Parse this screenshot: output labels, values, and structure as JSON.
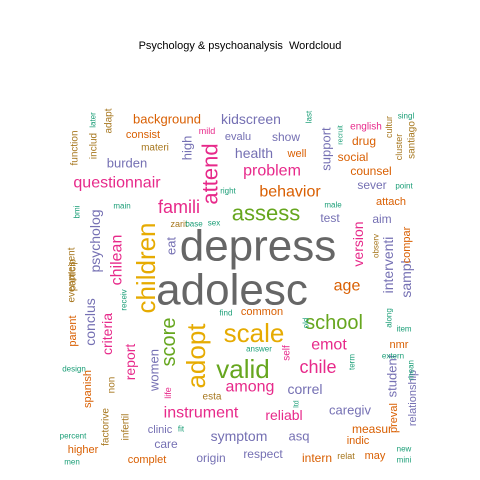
{
  "chart_data": {
    "type": "wordcloud",
    "title": "Psychology & psychoanalysis  Wordcloud",
    "palette": {
      "pink": "#E7298A",
      "green": "#66A61E",
      "gold": "#E6AB02",
      "orange": "#D95F02",
      "purple": "#7570B3",
      "teal": "#1B9E77",
      "brown": "#A6761D",
      "gray": "#666666"
    },
    "words": [
      {
        "text": "depress",
        "rank": 1,
        "color": "gray"
      },
      {
        "text": "adolesc",
        "rank": 1,
        "color": "gray"
      },
      {
        "text": "children",
        "rank": 2,
        "color": "gold"
      },
      {
        "text": "adopt",
        "rank": 2,
        "color": "gold"
      },
      {
        "text": "scale",
        "rank": 2,
        "color": "gold"
      },
      {
        "text": "valid",
        "rank": 2,
        "color": "green"
      },
      {
        "text": "assess",
        "rank": 2,
        "color": "green"
      },
      {
        "text": "attend",
        "rank": 3,
        "color": "pink"
      },
      {
        "text": "school",
        "rank": 3,
        "color": "green"
      },
      {
        "text": "score",
        "rank": 3,
        "color": "green"
      },
      {
        "text": "questionnair",
        "rank": 3,
        "color": "pink"
      },
      {
        "text": "famili",
        "rank": 3,
        "color": "pink"
      },
      {
        "text": "behavior",
        "rank": 3,
        "color": "orange"
      },
      {
        "text": "problem",
        "rank": 3,
        "color": "pink"
      },
      {
        "text": "chilean",
        "rank": 3,
        "color": "pink"
      },
      {
        "text": "instrument",
        "rank": 3,
        "color": "pink"
      },
      {
        "text": "among",
        "rank": 3,
        "color": "pink"
      },
      {
        "text": "chile",
        "rank": 3,
        "color": "pink"
      },
      {
        "text": "age",
        "rank": 3,
        "color": "orange"
      },
      {
        "text": "emot",
        "rank": 3,
        "color": "pink"
      },
      {
        "text": "version",
        "rank": 3,
        "color": "pink"
      },
      {
        "text": "criteria",
        "rank": 3,
        "color": "pink"
      },
      {
        "text": "psycholog",
        "rank": 3,
        "color": "purple"
      },
      {
        "text": "conclus",
        "rank": 3,
        "color": "purple"
      },
      {
        "text": "report",
        "rank": 3,
        "color": "pink"
      },
      {
        "text": "health",
        "rank": 4,
        "color": "purple"
      },
      {
        "text": "symptom",
        "rank": 4,
        "color": "purple"
      },
      {
        "text": "reliabl",
        "rank": 4,
        "color": "pink"
      },
      {
        "text": "kidscreen",
        "rank": 4,
        "color": "purple"
      },
      {
        "text": "support",
        "rank": 4,
        "color": "purple"
      },
      {
        "text": "interventi",
        "rank": 4,
        "color": "purple"
      },
      {
        "text": "sampl",
        "rank": 4,
        "color": "purple"
      },
      {
        "text": "correl",
        "rank": 4,
        "color": "purple"
      },
      {
        "text": "women",
        "rank": 4,
        "color": "purple"
      },
      {
        "text": "burden",
        "rank": 4,
        "color": "purple"
      },
      {
        "text": "background",
        "rank": 4,
        "color": "orange"
      },
      {
        "text": "asq",
        "rank": 4,
        "color": "purple"
      },
      {
        "text": "caregiv",
        "rank": 4,
        "color": "purple"
      },
      {
        "text": "eat",
        "rank": 4,
        "color": "purple"
      },
      {
        "text": "high",
        "rank": 4,
        "color": "purple"
      },
      {
        "text": "student",
        "rank": 4,
        "color": "purple"
      },
      {
        "text": "common",
        "rank": 5,
        "color": "orange"
      },
      {
        "text": "consist",
        "rank": 5,
        "color": "orange"
      },
      {
        "text": "show",
        "rank": 5,
        "color": "purple"
      },
      {
        "text": "social",
        "rank": 5,
        "color": "orange"
      },
      {
        "text": "sever",
        "rank": 5,
        "color": "purple"
      },
      {
        "text": "counsel",
        "rank": 5,
        "color": "orange"
      },
      {
        "text": "drug",
        "rank": 5,
        "color": "orange"
      },
      {
        "text": "evalu",
        "rank": 5,
        "color": "purple"
      },
      {
        "text": "respect",
        "rank": 5,
        "color": "purple"
      },
      {
        "text": "origin",
        "rank": 5,
        "color": "purple"
      },
      {
        "text": "intern",
        "rank": 5,
        "color": "orange"
      },
      {
        "text": "care",
        "rank": 5,
        "color": "purple"
      },
      {
        "text": "measur",
        "rank": 5,
        "color": "orange"
      },
      {
        "text": "test",
        "rank": 5,
        "color": "purple"
      },
      {
        "text": "aim",
        "rank": 5,
        "color": "purple"
      },
      {
        "text": "attach",
        "rank": 5,
        "color": "orange"
      },
      {
        "text": "compar",
        "rank": 5,
        "color": "orange"
      },
      {
        "text": "parent",
        "rank": 5,
        "color": "orange"
      },
      {
        "text": "spanish",
        "rank": 5,
        "color": "orange"
      },
      {
        "text": "higher",
        "rank": 5,
        "color": "orange"
      },
      {
        "text": "complet",
        "rank": 5,
        "color": "orange"
      },
      {
        "text": "relationship",
        "rank": 5,
        "color": "purple"
      },
      {
        "text": "preval",
        "rank": 5,
        "color": "orange"
      },
      {
        "text": "nmr",
        "rank": 5,
        "color": "orange"
      },
      {
        "text": "may",
        "rank": 5,
        "color": "orange"
      },
      {
        "text": "well",
        "rank": 5,
        "color": "orange"
      },
      {
        "text": "clinic",
        "rank": 5,
        "color": "purple"
      },
      {
        "text": "indic",
        "rank": 5,
        "color": "orange"
      },
      {
        "text": "materi",
        "rank": 6,
        "color": "brown"
      },
      {
        "text": "adapt",
        "rank": 6,
        "color": "brown"
      },
      {
        "text": "includ",
        "rank": 6,
        "color": "brown"
      },
      {
        "text": "function",
        "rank": 6,
        "color": "brown"
      },
      {
        "text": "particip",
        "rank": 6,
        "color": "brown"
      },
      {
        "text": "evenpresent",
        "rank": 6,
        "color": "brown"
      },
      {
        "text": "non",
        "rank": 6,
        "color": "brown"
      },
      {
        "text": "infertil",
        "rank": 6,
        "color": "brown"
      },
      {
        "text": "factorive",
        "rank": 6,
        "color": "brown"
      },
      {
        "text": "esta",
        "rank": 6,
        "color": "brown"
      },
      {
        "text": "english",
        "rank": 6,
        "color": "pink"
      },
      {
        "text": "self",
        "rank": 6,
        "color": "pink"
      },
      {
        "text": "santiago",
        "rank": 6,
        "color": "brown"
      },
      {
        "text": "cluster",
        "rank": 6,
        "color": "brown"
      },
      {
        "text": "cultur",
        "rank": 6,
        "color": "brown"
      },
      {
        "text": "relat",
        "rank": 6,
        "color": "brown"
      },
      {
        "text": "mild",
        "rank": 6,
        "color": "pink"
      },
      {
        "text": "life",
        "rank": 6,
        "color": "pink"
      },
      {
        "text": "zarit",
        "rank": 6,
        "color": "brown"
      },
      {
        "text": "observ",
        "rank": 6,
        "color": "brown"
      },
      {
        "text": "later",
        "rank": 7,
        "color": "teal"
      },
      {
        "text": "main",
        "rank": 7,
        "color": "teal"
      },
      {
        "text": "bmi",
        "rank": 7,
        "color": "teal"
      },
      {
        "text": "receiv",
        "rank": 7,
        "color": "teal"
      },
      {
        "text": "design",
        "rank": 7,
        "color": "teal"
      },
      {
        "text": "percent",
        "rank": 7,
        "color": "teal"
      },
      {
        "text": "men",
        "rank": 7,
        "color": "teal"
      },
      {
        "text": "fit",
        "rank": 7,
        "color": "teal"
      },
      {
        "text": "right",
        "rank": 7,
        "color": "teal"
      },
      {
        "text": "base",
        "rank": 7,
        "color": "teal"
      },
      {
        "text": "sex",
        "rank": 7,
        "color": "teal"
      },
      {
        "text": "find",
        "rank": 7,
        "color": "teal"
      },
      {
        "text": "answer",
        "rank": 7,
        "color": "teal"
      },
      {
        "text": "ltd",
        "rank": 7,
        "color": "teal"
      },
      {
        "text": "male",
        "rank": 7,
        "color": "teal"
      },
      {
        "text": "last",
        "rank": 7,
        "color": "teal"
      },
      {
        "text": "recruit",
        "rank": 7,
        "color": "teal"
      },
      {
        "text": "singl",
        "rank": 7,
        "color": "teal"
      },
      {
        "text": "point",
        "rank": 7,
        "color": "teal"
      },
      {
        "text": "along",
        "rank": 7,
        "color": "teal"
      },
      {
        "text": "item",
        "rank": 7,
        "color": "teal"
      },
      {
        "text": "extern",
        "rank": 7,
        "color": "teal"
      },
      {
        "text": "mean",
        "rank": 7,
        "color": "teal"
      },
      {
        "text": "term",
        "rank": 7,
        "color": "teal"
      },
      {
        "text": "old",
        "rank": 7,
        "color": "teal"
      },
      {
        "text": "new",
        "rank": 7,
        "color": "teal"
      },
      {
        "text": "mini",
        "rank": 7,
        "color": "teal"
      }
    ]
  }
}
